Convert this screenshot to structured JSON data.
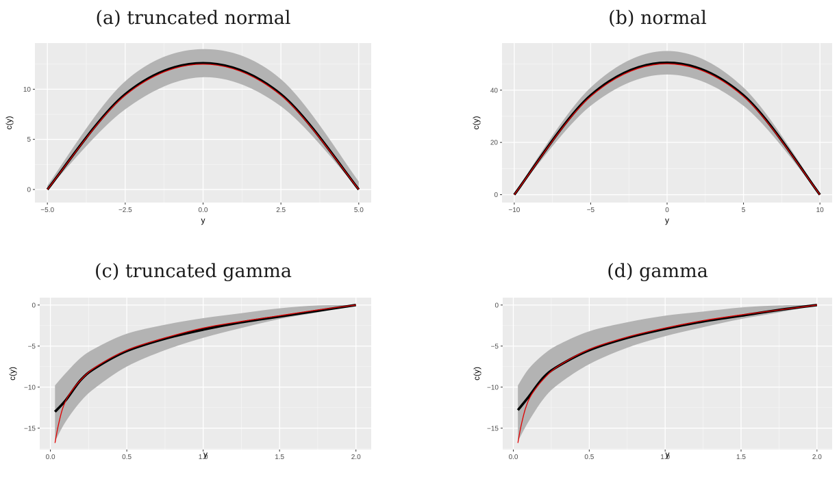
{
  "chart_data": [
    {
      "title": "(a) truncated normal",
      "type": "line",
      "xlabel": "y",
      "ylabel": "c(y)",
      "xlim": [
        -5.4,
        5.4
      ],
      "ylim": [
        -1.3,
        14.6
      ],
      "xticks": [
        -5.0,
        -2.5,
        0.0,
        2.5,
        5.0
      ],
      "xtick_labels": [
        "−5.0",
        "−2.5",
        "0.0",
        "2.5",
        "5.0"
      ],
      "yticks": [
        0,
        5,
        10
      ],
      "ytick_labels": [
        "0",
        "5",
        "10"
      ],
      "series": [
        {
          "x": [
            -5.0,
            -2.5,
            0.0,
            2.5,
            5.0
          ],
          "lower": [
            0.0,
            8.0,
            11.2,
            8.3,
            0.0
          ],
          "upper": [
            0.4,
            10.8,
            14.0,
            11.0,
            0.8
          ],
          "color": "#b3b3b3"
        },
        {
          "x": [
            -5.0,
            -2.5,
            0.0,
            2.5,
            5.0
          ],
          "y": [
            0.0,
            9.5,
            12.6,
            9.5,
            0.0
          ],
          "color": "#000000"
        },
        {
          "x": [
            -5.0,
            -2.5,
            0.0,
            2.5,
            5.0
          ],
          "y": [
            0.0,
            9.4,
            12.5,
            9.4,
            0.0
          ],
          "color": "#e00000"
        }
      ]
    },
    {
      "title": "(b) normal",
      "type": "line",
      "xlabel": "y",
      "ylabel": "c(y)",
      "xlim": [
        -10.8,
        10.8
      ],
      "ylim": [
        -3.0,
        58.0
      ],
      "xticks": [
        -10,
        -5,
        0,
        5,
        10
      ],
      "xtick_labels": [
        "−10",
        "−5",
        "0",
        "5",
        "10"
      ],
      "yticks": [
        0,
        20,
        40
      ],
      "ytick_labels": [
        "0",
        "20",
        "40"
      ],
      "series": [
        {
          "x": [
            -10,
            -5,
            0,
            5,
            10
          ],
          "lower": [
            0.0,
            34.0,
            46.0,
            34.0,
            0.0
          ],
          "upper": [
            0.5,
            41.0,
            55.0,
            41.0,
            0.5
          ],
          "color": "#b3b3b3"
        },
        {
          "x": [
            -10,
            -5,
            0,
            5,
            10
          ],
          "y": [
            0.0,
            38.0,
            50.5,
            38.0,
            0.0
          ],
          "color": "#000000"
        },
        {
          "x": [
            -10,
            -5,
            0,
            5,
            10
          ],
          "y": [
            0.0,
            37.6,
            50.1,
            37.6,
            0.0
          ],
          "color": "#e00000"
        }
      ]
    },
    {
      "title": "(c) truncated gamma",
      "type": "line",
      "xlabel": "y",
      "ylabel": "c(y)",
      "xlim": [
        -0.07,
        2.1
      ],
      "ylim": [
        -17.6,
        0.9
      ],
      "xticks": [
        0.0,
        0.5,
        1.0,
        1.5,
        2.0
      ],
      "xtick_labels": [
        "0.0",
        "0.5",
        "1.0",
        "1.5",
        "2.0"
      ],
      "yticks": [
        0,
        -5,
        -10,
        -15
      ],
      "ytick_labels": [
        "0",
        "−5",
        "−10",
        "−15"
      ],
      "series": [
        {
          "x": [
            0.03,
            0.1,
            0.2,
            0.3,
            0.5,
            0.75,
            1.0,
            1.25,
            1.5,
            1.75,
            2.0
          ],
          "lower": [
            -16.6,
            -14.2,
            -11.7,
            -10.0,
            -7.5,
            -5.5,
            -4.0,
            -2.8,
            -1.7,
            -0.9,
            0.0
          ],
          "upper": [
            -9.8,
            -8.3,
            -6.4,
            -5.2,
            -3.5,
            -2.4,
            -1.6,
            -1.0,
            -0.4,
            -0.05,
            0.0
          ],
          "color": "#b3b3b3"
        },
        {
          "x": [
            0.03,
            0.1,
            0.2,
            0.3,
            0.5,
            0.75,
            1.0,
            1.25,
            1.5,
            1.75,
            2.0
          ],
          "y": [
            -13.0,
            -11.6,
            -9.1,
            -7.6,
            -5.6,
            -4.1,
            -3.0,
            -2.1,
            -1.4,
            -0.7,
            0.0
          ],
          "color": "#000000"
        },
        {
          "x": [
            0.03,
            0.05,
            0.08,
            0.12,
            0.2,
            0.3,
            0.5,
            0.75,
            1.0,
            1.25,
            1.5,
            1.75,
            2.0
          ],
          "y": [
            -16.8,
            -14.8,
            -12.6,
            -11.0,
            -9.1,
            -7.5,
            -5.5,
            -4.0,
            -2.8,
            -2.0,
            -1.3,
            -0.6,
            0.0
          ],
          "color": "#e00000"
        }
      ]
    },
    {
      "title": "(d) gamma",
      "type": "line",
      "xlabel": "y",
      "ylabel": "c(y)",
      "xlim": [
        -0.07,
        2.1
      ],
      "ylim": [
        -17.6,
        0.9
      ],
      "xticks": [
        0.0,
        0.5,
        1.0,
        1.5,
        2.0
      ],
      "xtick_labels": [
        "0.0",
        "0.5",
        "1.0",
        "1.5",
        "2.0"
      ],
      "yticks": [
        0,
        -5,
        -10,
        -15
      ],
      "ytick_labels": [
        "0",
        "−5",
        "−10",
        "−15"
      ],
      "series": [
        {
          "x": [
            0.03,
            0.1,
            0.2,
            0.3,
            0.5,
            0.75,
            1.0,
            1.25,
            1.5,
            1.75,
            2.0
          ],
          "lower": [
            -16.6,
            -14.2,
            -11.4,
            -9.6,
            -7.2,
            -5.2,
            -3.8,
            -2.7,
            -1.7,
            -0.9,
            0.0
          ],
          "upper": [
            -9.8,
            -7.8,
            -6.0,
            -4.8,
            -3.2,
            -2.1,
            -1.3,
            -0.8,
            -0.3,
            -0.05,
            0.0
          ],
          "color": "#b3b3b3"
        },
        {
          "x": [
            0.03,
            0.1,
            0.2,
            0.3,
            0.5,
            0.75,
            1.0,
            1.25,
            1.5,
            1.75,
            2.0
          ],
          "y": [
            -12.8,
            -11.2,
            -8.8,
            -7.4,
            -5.5,
            -4.0,
            -2.9,
            -2.0,
            -1.3,
            -0.6,
            0.0
          ],
          "color": "#000000"
        },
        {
          "x": [
            0.03,
            0.05,
            0.08,
            0.12,
            0.2,
            0.3,
            0.5,
            0.75,
            1.0,
            1.25,
            1.5,
            1.75,
            2.0
          ],
          "y": [
            -16.8,
            -14.8,
            -12.6,
            -10.9,
            -9.0,
            -7.4,
            -5.4,
            -3.9,
            -2.8,
            -1.9,
            -1.2,
            -0.6,
            0.0
          ],
          "color": "#e00000"
        }
      ]
    }
  ]
}
